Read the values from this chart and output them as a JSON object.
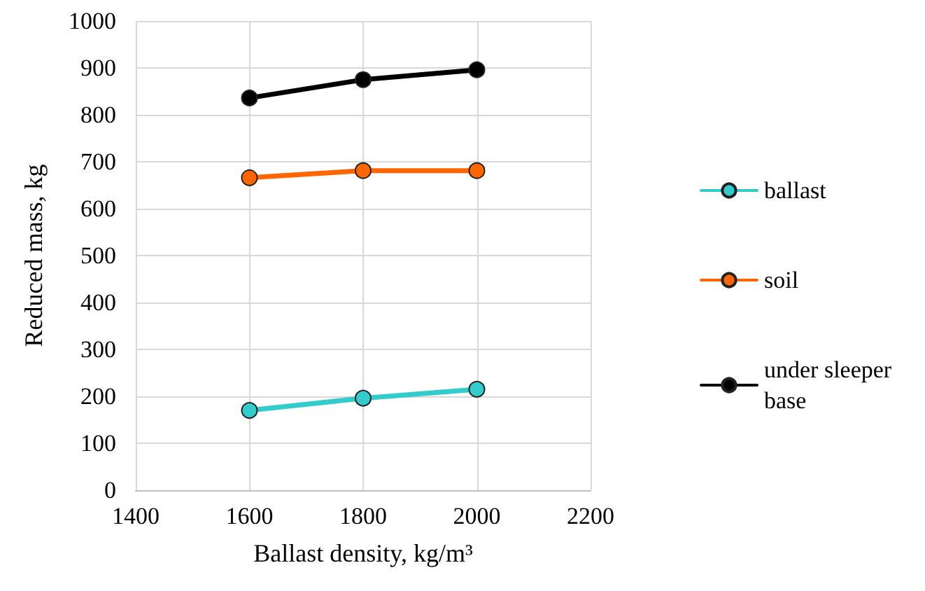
{
  "chart_data": {
    "type": "line",
    "xlabel": "Ballast density, kg/m³",
    "ylabel": "Reduced mass, kg",
    "x": [
      1600,
      1800,
      2000
    ],
    "series": [
      {
        "name": "ballast",
        "color": "#33cccc",
        "values": [
          170,
          196,
          215
        ]
      },
      {
        "name": "soil",
        "color": "#ff6600",
        "values": [
          666,
          681,
          681
        ]
      },
      {
        "name": "under sleeper base",
        "color": "#000000",
        "values": [
          836,
          875,
          896
        ]
      }
    ],
    "xlim": [
      1400,
      2200
    ],
    "xticks": [
      1400,
      1600,
      1800,
      2000,
      2200
    ],
    "ylim": [
      0,
      1000
    ],
    "yticks": [
      0,
      100,
      200,
      300,
      400,
      500,
      600,
      700,
      800,
      900,
      1000
    ],
    "grid": true,
    "legend": "right",
    "marker": "circle",
    "line_style": "solid"
  }
}
